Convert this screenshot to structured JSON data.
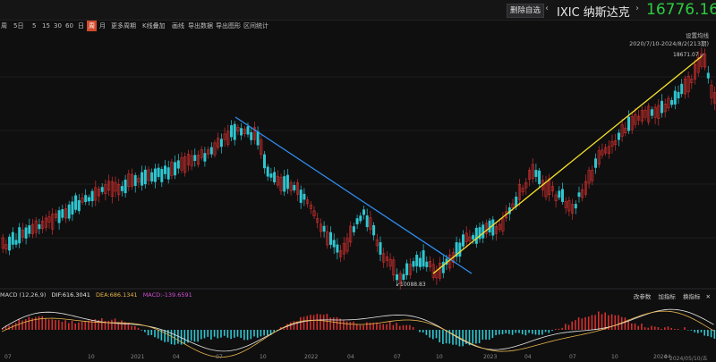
{
  "header": {
    "remove_fav_label": "删除自选",
    "ticker": "IXIC 纳斯达克",
    "price": "16776.16",
    "prev_arrow": "‹",
    "next_arrow": "›"
  },
  "toolbar": {
    "items": [
      "周",
      "5日",
      "5",
      "15",
      "30",
      "60",
      "日",
      "周",
      "月",
      "更多周期",
      "K线叠加",
      "画线",
      "导出数据",
      "导出图形",
      "区间统计"
    ],
    "active_index": 7
  },
  "chart_info": {
    "setting_label": "设置均线",
    "range_label": "2020/7/10-2024/8/2(213期)",
    "high_label": "18671.07",
    "low_label": "10088.83"
  },
  "macd": {
    "label": "MACD (12,26,9)",
    "dif": "DIF:616.3041",
    "dea": "DEA:686.1341",
    "macd": "MACD:-139.6591",
    "buttons": [
      "改参数",
      "加指标",
      "换指标"
    ],
    "button_last": "✕"
  },
  "x_axis": {
    "labels": [
      "07",
      "10",
      "2021",
      "04",
      "07",
      "10",
      "2022",
      "04",
      "07",
      "10",
      "2023",
      "04",
      "07",
      "10",
      "2024",
      "04",
      "2024/05/10/五"
    ]
  },
  "colors": {
    "up": "#d3312e",
    "down": "#2ec6d0",
    "trend_down": "#2f8ff0",
    "trend_up": "#f5e12a",
    "dif": "#e8e8e8",
    "dea": "#e8b54a"
  }
}
